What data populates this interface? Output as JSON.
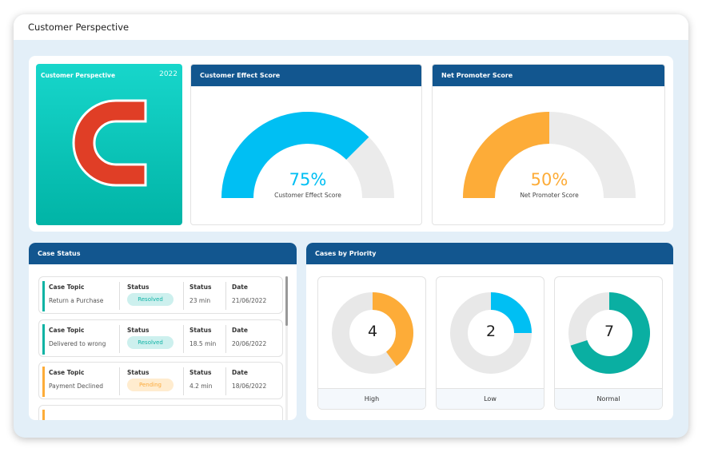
{
  "window": {
    "title": "Customer Perspective"
  },
  "brand_tile": {
    "title": "Customer Perspective",
    "year": "2022",
    "icon": "magnet-icon",
    "bg": "#0fc7bb",
    "icon_color": "#e03e26"
  },
  "gauges": [
    {
      "title": "Customer Effect Score",
      "value": 75,
      "value_label": "75%",
      "caption": "Customer Effect Score",
      "color": "#00bff3"
    },
    {
      "title": "Net Promoter Score",
      "value": 50,
      "value_label": "50%",
      "caption": "Net Promoter Score",
      "color": "#fdac38"
    }
  ],
  "case_status": {
    "title": "Case Status",
    "rows": [
      {
        "topic_label": "Case Topic",
        "topic": "Return a Purchase",
        "status_label": "Status",
        "status": "Resolved",
        "time_label": "Status",
        "time": "23 min",
        "date_label": "Date",
        "date": "21/06/2022",
        "accent": "#0bb3a4"
      },
      {
        "topic_label": "Case Topic",
        "topic": "Delivered to wrong",
        "status_label": "Status",
        "status": "Resolved",
        "time_label": "Status",
        "time": "18.5 min",
        "date_label": "Date",
        "date": "20/06/2022",
        "accent": "#0bb3a4"
      },
      {
        "topic_label": "Case Topic",
        "topic": "Payment Declined",
        "status_label": "Status",
        "status": "Pending",
        "time_label": "Status",
        "time": "4.2 min",
        "date_label": "Date",
        "date": "18/06/2022",
        "accent": "#fdac38"
      }
    ]
  },
  "priority": {
    "title": "Cases by Priority",
    "items": [
      {
        "label": "High",
        "count": "4",
        "fraction": 0.4,
        "color": "#fdac38"
      },
      {
        "label": "Low",
        "count": "2",
        "fraction": 0.25,
        "color": "#00bff3"
      },
      {
        "label": "Normal",
        "count": "7",
        "fraction": 0.7,
        "color": "#0aafa2"
      }
    ]
  }
}
